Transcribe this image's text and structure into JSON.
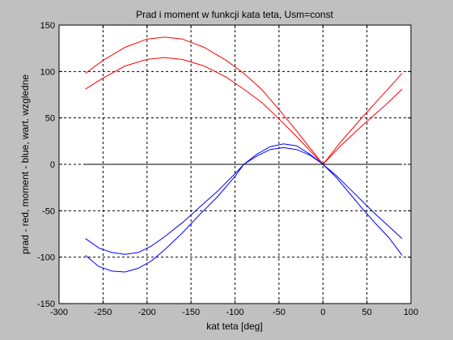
{
  "chart_data": {
    "type": "line",
    "title": "Prad i moment w funkcji kata teta, Usm=const",
    "xlabel": "kat teta [deg]",
    "ylabel": "prad - red, moment - blue, wart. wzgledne",
    "xlim": [
      -300,
      100
    ],
    "ylim": [
      -150,
      150
    ],
    "xticks": [
      -300,
      -250,
      -200,
      -150,
      -100,
      -50,
      0,
      50,
      100
    ],
    "yticks": [
      -150,
      -100,
      -50,
      0,
      50,
      100,
      150
    ],
    "grid": true,
    "series": [
      {
        "color": "#ff0000",
        "x": [
          -270,
          -250,
          -225,
          -200,
          -180,
          -160,
          -135,
          -110,
          -90,
          -70,
          -50,
          -30,
          -15,
          0,
          20,
          45,
          70,
          90
        ],
        "y": [
          98,
          112,
          126,
          135,
          137,
          135,
          126,
          112,
          98,
          81,
          59,
          36,
          18,
          0,
          24,
          51,
          77,
          98
        ]
      },
      {
        "color": "#ff0000",
        "x": [
          -270,
          -250,
          -225,
          -200,
          -180,
          -160,
          -135,
          -110,
          -90,
          -70,
          -50,
          -30,
          -15,
          0,
          20,
          45,
          70,
          90
        ],
        "y": [
          81,
          93,
          106,
          113,
          115,
          113,
          106,
          94,
          81,
          67,
          49,
          30,
          15,
          0,
          20,
          42,
          63,
          81
        ]
      },
      {
        "color": "#0000ff",
        "x": [
          -270,
          -255,
          -240,
          -225,
          -210,
          -195,
          -180,
          -160,
          -140,
          -120,
          -100,
          -90,
          -75,
          -60,
          -45,
          -30,
          -15,
          0,
          15,
          30,
          45,
          60,
          75,
          90
        ],
        "y": [
          -98,
          -110,
          -115,
          -116,
          -112,
          -104,
          -92,
          -74,
          -54,
          -35,
          -13,
          0,
          11,
          19,
          22,
          20,
          11,
          0,
          -14,
          -31,
          -48,
          -64,
          -79,
          -98
        ]
      },
      {
        "color": "#0000ff",
        "x": [
          -270,
          -255,
          -240,
          -225,
          -210,
          -195,
          -180,
          -160,
          -140,
          -120,
          -100,
          -90,
          -75,
          -60,
          -45,
          -30,
          -15,
          0,
          15,
          30,
          45,
          60,
          75,
          90
        ],
        "y": [
          -80,
          -90,
          -95,
          -97,
          -95,
          -88,
          -78,
          -63,
          -46,
          -29,
          -10,
          0,
          9,
          16,
          18,
          16,
          10,
          0,
          -12,
          -26,
          -40,
          -54,
          -67,
          -80
        ]
      },
      {
        "color": "#000000",
        "x": [
          -270,
          90
        ],
        "y": [
          0,
          0
        ]
      }
    ]
  }
}
